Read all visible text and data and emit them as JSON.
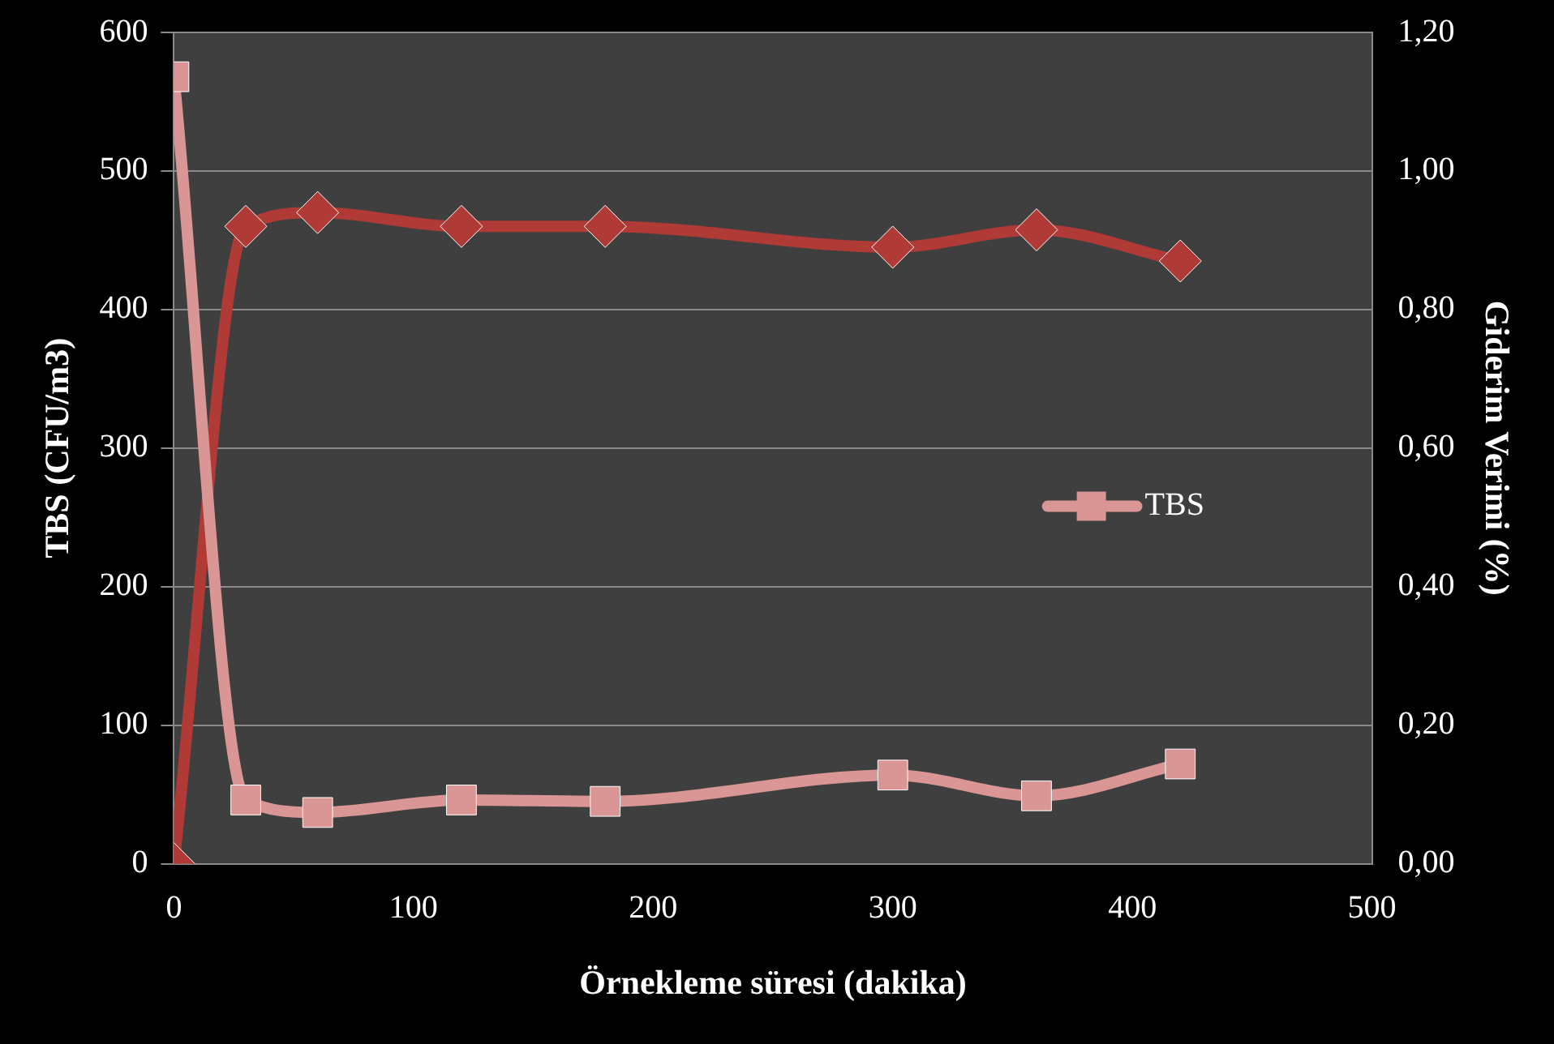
{
  "chart_data": {
    "type": "line",
    "xlabel": "Örnekleme süresi (dakika)",
    "ylabel": "TBS (CFU/m3)",
    "y2label": "Giderim Verimi (%)",
    "xlim": [
      0,
      500
    ],
    "xticks": [
      0,
      100,
      200,
      300,
      400,
      500
    ],
    "ylim": [
      0,
      600
    ],
    "yticks": [
      0,
      100,
      200,
      300,
      400,
      500,
      600
    ],
    "y2lim": [
      0,
      1.2
    ],
    "y2ticks": [
      {
        "value": 0,
        "label": "0,00"
      },
      {
        "value": 0.2,
        "label": "0,20"
      },
      {
        "value": 0.4,
        "label": "0,40"
      },
      {
        "value": 0.6,
        "label": "0,60"
      },
      {
        "value": 0.8,
        "label": "0,80"
      },
      {
        "value": 1,
        "label": "1,00"
      },
      {
        "value": 1.2,
        "label": "1,20"
      }
    ],
    "grid": "y",
    "legend": "right",
    "series": [
      {
        "name": "TBS",
        "color": "#d99694",
        "marker": "square",
        "x": [
          0,
          30,
          60,
          120,
          180,
          300,
          360,
          420
        ],
        "values": [
          568,
          46,
          37,
          46,
          45,
          64,
          49,
          72
        ]
      },
      {
        "color": "#b03a36",
        "marker": "diamond",
        "axis": "y2",
        "x": [
          0,
          30,
          60,
          120,
          180,
          300,
          360,
          420
        ],
        "values": [
          0,
          0.92,
          0.94,
          0.92,
          0.92,
          0.89,
          0.915,
          0.87
        ]
      }
    ]
  }
}
